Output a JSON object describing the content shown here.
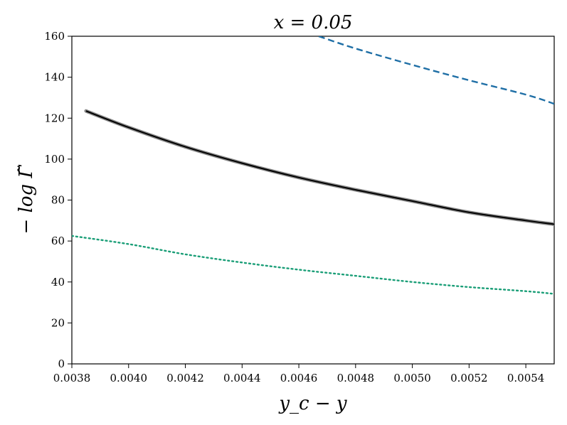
{
  "chart_data": {
    "type": "line",
    "title": "x = 0.05",
    "xlabel": "y_c − y",
    "ylabel": "− log Γ̃",
    "xlim": [
      0.0038,
      0.0055
    ],
    "ylim": [
      0,
      160
    ],
    "xticks": [
      "0.0038",
      "0.0040",
      "0.0042",
      "0.0044",
      "0.0046",
      "0.0048",
      "0.0050",
      "0.0052",
      "0.0054"
    ],
    "yticks": [
      "0",
      "20",
      "40",
      "60",
      "80",
      "100",
      "120",
      "140",
      "160"
    ],
    "grid": false,
    "legend": "none",
    "series": [
      {
        "style": "solid",
        "color": "#000000",
        "band_color": "#888888",
        "points": [
          [
            0.00385,
            123.5
          ],
          [
            0.004,
            115.5
          ],
          [
            0.0042,
            106.0
          ],
          [
            0.0044,
            98.0
          ],
          [
            0.0046,
            91.0
          ],
          [
            0.0048,
            85.0
          ],
          [
            0.005,
            79.5
          ],
          [
            0.0052,
            74.0
          ],
          [
            0.0054,
            70.0
          ],
          [
            0.0055,
            68.2
          ]
        ]
      },
      {
        "style": "dashed",
        "color": "#1f6fa6",
        "points": [
          [
            0.00467,
            160.0
          ],
          [
            0.0048,
            154.0
          ],
          [
            0.005,
            146.0
          ],
          [
            0.0052,
            138.5
          ],
          [
            0.0054,
            131.5
          ],
          [
            0.0055,
            127.0
          ]
        ]
      },
      {
        "style": "dotted",
        "color": "#1a9e77",
        "points": [
          [
            0.0038,
            62.5
          ],
          [
            0.004,
            58.5
          ],
          [
            0.0042,
            53.5
          ],
          [
            0.0044,
            49.5
          ],
          [
            0.0046,
            46.0
          ],
          [
            0.0048,
            43.0
          ],
          [
            0.005,
            40.0
          ],
          [
            0.0052,
            37.5
          ],
          [
            0.0054,
            35.5
          ],
          [
            0.0055,
            34.2
          ]
        ]
      }
    ]
  }
}
